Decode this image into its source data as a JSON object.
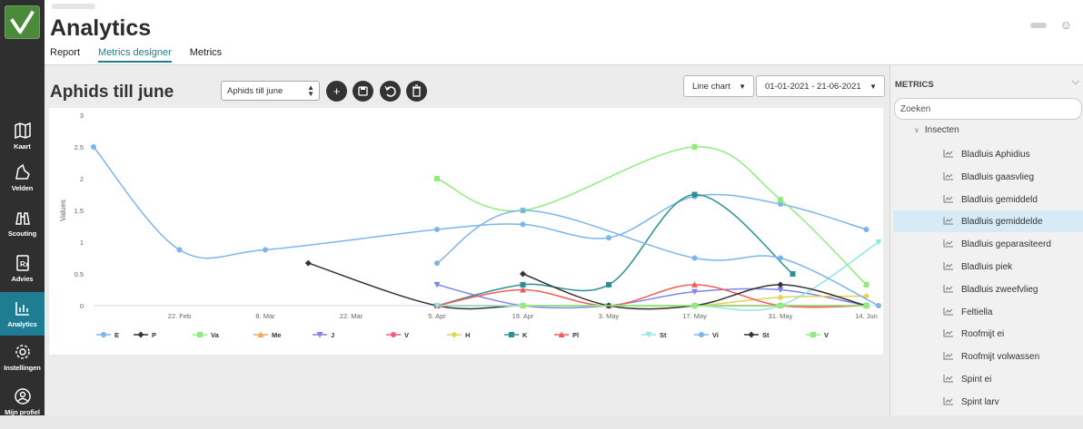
{
  "sidebar": {
    "items": [
      {
        "label": "Kaart",
        "icon": "map-icon"
      },
      {
        "label": "Velden",
        "icon": "field-icon"
      },
      {
        "label": "Scouting",
        "icon": "binoculars-icon"
      },
      {
        "label": "Advies",
        "icon": "prescription-icon"
      },
      {
        "label": "Analytics",
        "icon": "analytics-icon",
        "active": true
      },
      {
        "label": "Instellingen",
        "icon": "gear-icon"
      },
      {
        "label": "Mijn profiel",
        "icon": "profile-icon"
      }
    ]
  },
  "header": {
    "title": "Analytics",
    "tabs": [
      "Report",
      "Metrics designer",
      "Metrics"
    ],
    "active_tab": "Metrics designer"
  },
  "designer": {
    "chart_title": "Aphids till june",
    "selected_chart": "Aphids till june",
    "chart_type": "Line chart",
    "date_range": "01-01-2021 - 21-06-2021"
  },
  "metrics_panel": {
    "heading": "METRICS",
    "search_placeholder": "Zoeken",
    "group": "Insecten",
    "items": [
      "Bladluis Aphidius",
      "Bladluis gaasvlieg",
      "Bladluis gemiddeld",
      "Bladluis gemiddelde",
      "Bladluis geparasiteerd",
      "Bladluis piek",
      "Bladluis zweefvlieg",
      "Feltiella",
      "Roofmijt ei",
      "Roofmijt volwassen",
      "Spint ei",
      "Spint larv"
    ],
    "selected_index": 3
  },
  "colors": {
    "accent": "#1f7d93",
    "sidebar": "#2f2f2f",
    "selected_row": "#d7ebf7"
  },
  "chart_data": {
    "type": "line",
    "ylabel": "Values",
    "xlabel": "",
    "ylim": [
      0,
      3
    ],
    "y_ticks": [
      "0",
      "0.5",
      "1",
      "1.5",
      "2",
      "2.5",
      "3"
    ],
    "x_ticks": [
      "22. Feb",
      "8. Mar",
      "22. Mar",
      "5. Apr",
      "19. Apr",
      "3. May",
      "17. May",
      "31. May",
      "14. Jun"
    ],
    "x_domain": [
      "2021-02-08",
      "2021-06-16"
    ],
    "grid": false,
    "legend_position": "bottom",
    "series": [
      {
        "name": "E",
        "color": "#7cb5ec",
        "marker": "circle",
        "points": [
          [
            "2021-02-08",
            2.5
          ],
          [
            "2021-02-22",
            0.88
          ],
          [
            "2021-03-08",
            0.88
          ],
          [
            "2021-04-05",
            1.2
          ],
          [
            "2021-04-19",
            1.28
          ],
          [
            "2021-05-03",
            1.07
          ],
          [
            "2021-05-17",
            1.72
          ],
          [
            "2021-05-31",
            1.6
          ],
          [
            "2021-06-14",
            1.2
          ]
        ]
      },
      {
        "name": "P",
        "color": "#333333",
        "marker": "diamond",
        "points": [
          [
            "2021-03-15",
            0.67
          ],
          [
            "2021-04-05",
            0.0
          ],
          [
            "2021-04-19",
            0.0
          ],
          [
            "2021-05-03",
            0.0
          ],
          [
            "2021-05-17",
            0.0
          ],
          [
            "2021-05-31",
            0.0
          ],
          [
            "2021-06-14",
            0.0
          ]
        ]
      },
      {
        "name": "Va",
        "color": "#90ed7d",
        "marker": "square",
        "points": [
          [
            "2021-04-05",
            2.0
          ],
          [
            "2021-04-19",
            1.5
          ],
          [
            "2021-05-17",
            2.5
          ],
          [
            "2021-05-31",
            1.67
          ],
          [
            "2021-06-14",
            0.33
          ]
        ]
      },
      {
        "name": "Me",
        "color": "#f7a35c",
        "marker": "triangle",
        "points": [
          [
            "2021-04-05",
            0.0
          ],
          [
            "2021-04-19",
            0.0
          ],
          [
            "2021-05-03",
            0.0
          ],
          [
            "2021-05-17",
            0.0
          ],
          [
            "2021-05-31",
            0.0
          ],
          [
            "2021-06-14",
            0.0
          ]
        ]
      },
      {
        "name": "J",
        "color": "#8085e9",
        "marker": "triangle-down",
        "points": [
          [
            "2021-04-05",
            0.33
          ],
          [
            "2021-04-19",
            0.0
          ],
          [
            "2021-05-03",
            0.0
          ],
          [
            "2021-05-17",
            0.22
          ],
          [
            "2021-05-31",
            0.25
          ],
          [
            "2021-06-14",
            0.0
          ]
        ]
      },
      {
        "name": "V",
        "color": "#f15c80",
        "marker": "circle",
        "points": [
          [
            "2021-04-05",
            0.0
          ],
          [
            "2021-04-19",
            0.0
          ],
          [
            "2021-05-03",
            0.0
          ],
          [
            "2021-05-17",
            0.0
          ],
          [
            "2021-05-31",
            0.0
          ],
          [
            "2021-06-14",
            0.0
          ]
        ]
      },
      {
        "name": "H",
        "color": "#e4d354",
        "marker": "diamond",
        "points": [
          [
            "2021-04-05",
            0.0
          ],
          [
            "2021-04-19",
            0.0
          ],
          [
            "2021-05-03",
            0.0
          ],
          [
            "2021-05-17",
            0.0
          ],
          [
            "2021-05-31",
            0.13
          ],
          [
            "2021-06-14",
            0.15
          ]
        ]
      },
      {
        "name": "K",
        "color": "#2b908f",
        "marker": "square",
        "points": [
          [
            "2021-04-05",
            0.0
          ],
          [
            "2021-04-19",
            0.33
          ],
          [
            "2021-05-03",
            0.33
          ],
          [
            "2021-05-17",
            1.75
          ],
          [
            "2021-06-02",
            0.5
          ]
        ]
      },
      {
        "name": "Pl",
        "color": "#f45b5b",
        "marker": "triangle",
        "points": [
          [
            "2021-04-05",
            0.0
          ],
          [
            "2021-04-19",
            0.25
          ],
          [
            "2021-05-03",
            0.0
          ],
          [
            "2021-05-17",
            0.33
          ],
          [
            "2021-05-31",
            0.0
          ],
          [
            "2021-06-14",
            0.0
          ]
        ]
      },
      {
        "name": "St",
        "color": "#91e8e1",
        "marker": "triangle-down",
        "points": [
          [
            "2021-04-05",
            0.0
          ],
          [
            "2021-04-19",
            0.0
          ],
          [
            "2021-05-03",
            0.0
          ],
          [
            "2021-05-17",
            0.0
          ],
          [
            "2021-05-31",
            0.0
          ],
          [
            "2021-06-16",
            1.0
          ]
        ]
      },
      {
        "name": "Vi",
        "color": "#7cb5ec",
        "marker": "circle",
        "points": [
          [
            "2021-04-05",
            0.67
          ],
          [
            "2021-04-19",
            1.5
          ],
          [
            "2021-05-17",
            0.75
          ],
          [
            "2021-05-31",
            0.75
          ],
          [
            "2021-06-16",
            0.0
          ]
        ]
      },
      {
        "name": "St",
        "color": "#333333",
        "marker": "diamond",
        "points": [
          [
            "2021-04-19",
            0.5
          ],
          [
            "2021-05-03",
            0.0
          ],
          [
            "2021-05-17",
            0.0
          ],
          [
            "2021-05-31",
            0.33
          ],
          [
            "2021-06-14",
            0.0
          ]
        ]
      },
      {
        "name": "V",
        "color": "#90ed7d",
        "marker": "square",
        "points": [
          [
            "2021-04-19",
            0.0
          ],
          [
            "2021-05-17",
            0.0
          ],
          [
            "2021-05-31",
            0.0
          ],
          [
            "2021-06-14",
            0.0
          ]
        ]
      }
    ]
  }
}
